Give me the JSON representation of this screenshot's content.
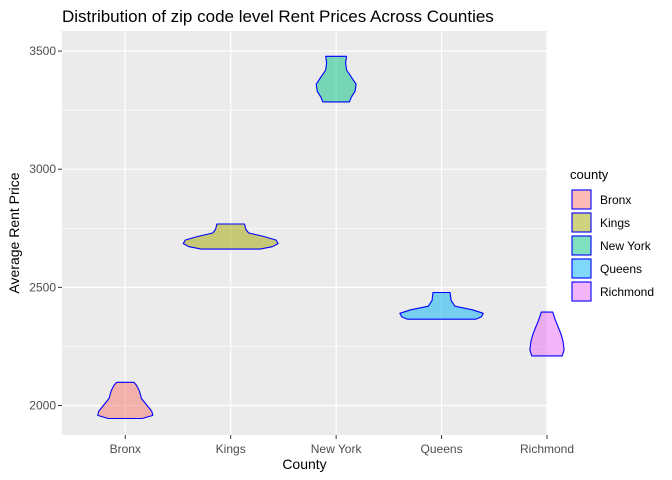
{
  "chart_data": {
    "type": "violin",
    "title": "Distribution of zip code level Rent Prices Across Counties",
    "xlabel": "County",
    "ylabel": "Average Rent Price",
    "ylim": [
      1875,
      3585
    ],
    "yticks": [
      2000,
      2500,
      3000,
      3500
    ],
    "categories": [
      "Bronx",
      "Kings",
      "New York",
      "Queens",
      "Richmond"
    ],
    "legend": {
      "title": "county",
      "position": "right"
    },
    "outline_color": "#0000ff",
    "grid": true,
    "series": [
      {
        "name": "Bronx",
        "color": "#f8766d",
        "profile": [
          [
            1945,
            0.36
          ],
          [
            1958,
            0.58
          ],
          [
            1975,
            0.56
          ],
          [
            2000,
            0.46
          ],
          [
            2030,
            0.34
          ],
          [
            2060,
            0.3
          ],
          [
            2085,
            0.24
          ],
          [
            2098,
            0.18
          ]
        ]
      },
      {
        "name": "Kings",
        "color": "#a3a500",
        "profile": [
          [
            2662,
            0.62
          ],
          [
            2672,
            0.88
          ],
          [
            2685,
            1.0
          ],
          [
            2700,
            0.96
          ],
          [
            2715,
            0.7
          ],
          [
            2730,
            0.38
          ],
          [
            2745,
            0.32
          ],
          [
            2768,
            0.29
          ]
        ]
      },
      {
        "name": "New York",
        "color": "#00bf7d",
        "profile": [
          [
            3285,
            0.28
          ],
          [
            3305,
            0.32
          ],
          [
            3330,
            0.4
          ],
          [
            3360,
            0.42
          ],
          [
            3390,
            0.32
          ],
          [
            3420,
            0.22
          ],
          [
            3450,
            0.2
          ],
          [
            3478,
            0.22
          ]
        ]
      },
      {
        "name": "Queens",
        "color": "#00b0f6",
        "profile": [
          [
            2365,
            0.72
          ],
          [
            2375,
            0.84
          ],
          [
            2390,
            0.88
          ],
          [
            2405,
            0.65
          ],
          [
            2420,
            0.28
          ],
          [
            2445,
            0.2
          ],
          [
            2478,
            0.18
          ]
        ]
      },
      {
        "name": "Richmond",
        "color": "#e76bf3",
        "profile": [
          [
            2210,
            0.32
          ],
          [
            2235,
            0.36
          ],
          [
            2270,
            0.34
          ],
          [
            2300,
            0.3
          ],
          [
            2330,
            0.24
          ],
          [
            2360,
            0.18
          ],
          [
            2395,
            0.12
          ]
        ]
      }
    ]
  }
}
